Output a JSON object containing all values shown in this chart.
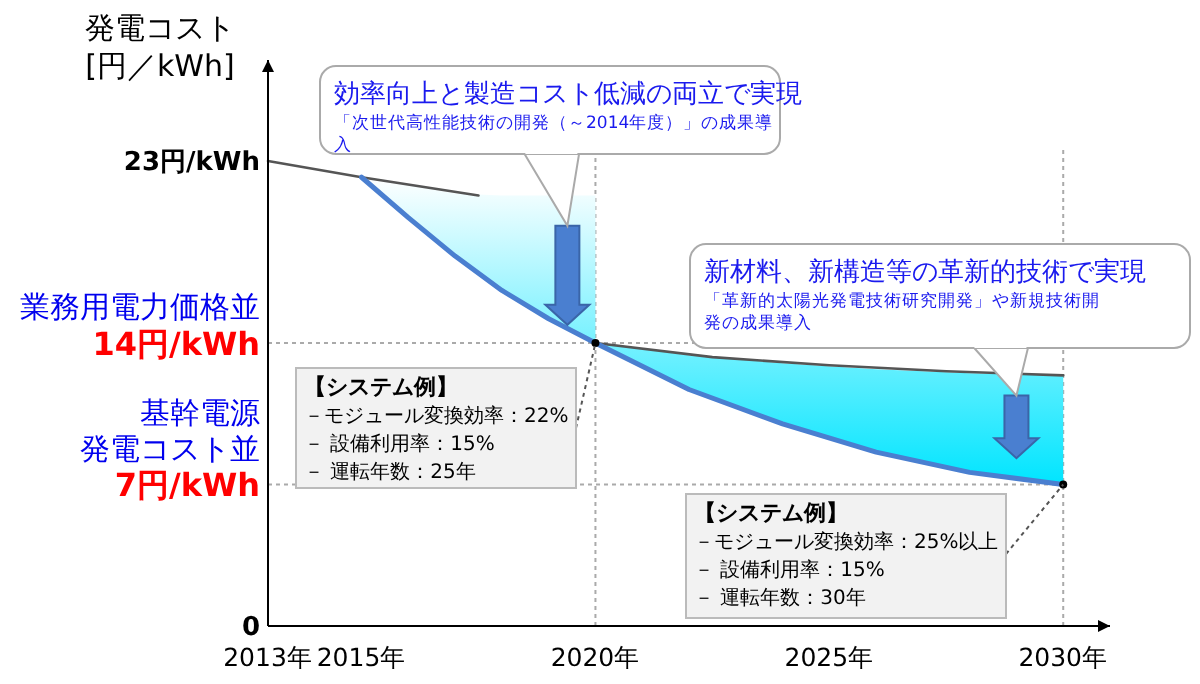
{
  "chart_data": {
    "type": "line",
    "ylabel": "発電コスト\n[円／kWh]",
    "xlim": [
      2013,
      2031
    ],
    "ylim": [
      0,
      28
    ],
    "xticks": [
      {
        "value": 2013,
        "label": "2013年"
      },
      {
        "value": 2015,
        "label": "2015年"
      },
      {
        "value": 2020,
        "label": "2020年"
      },
      {
        "value": 2025,
        "label": "2025年"
      },
      {
        "value": 2030,
        "label": "2030年"
      }
    ],
    "yticks": [
      0,
      {
        "value": 7,
        "label": "7円/kWh"
      },
      {
        "value": 14,
        "label": "14円/kWh"
      },
      {
        "value": 23,
        "label": "23円/kWh"
      }
    ],
    "marker": "none",
    "line_style": "solid",
    "series": [
      {
        "color": "#555555",
        "x": [
          2013,
          2015,
          2017.5
        ],
        "values": [
          23,
          22.2,
          21.3
        ]
      },
      {
        "color": "#555555",
        "x": [
          2020,
          2022.5,
          2025,
          2027.5,
          2030
        ],
        "values": [
          14,
          13.3,
          12.9,
          12.6,
          12.4
        ]
      },
      {
        "color": "#4a7fd0",
        "x": [
          2015,
          2016,
          2017,
          2018,
          2019,
          2020,
          2020,
          2022,
          2024,
          2026,
          2028,
          2030
        ],
        "values": [
          22.2,
          20.2,
          18.3,
          16.6,
          15.2,
          14,
          14,
          11.7,
          10.0,
          8.6,
          7.6,
          7.0
        ],
        "lower": [
          22.2,
          20.2,
          18.3,
          16.6,
          15.2,
          14,
          14,
          11.7,
          10.0,
          8.6,
          7.6,
          7.0
        ],
        "upper": [
          22.2,
          21.8,
          21.4,
          21.3,
          21.3,
          21.3,
          14,
          13.4,
          13.0,
          12.7,
          12.5,
          12.4
        ]
      },
      {
        "type": "scatter",
        "marker": "circle",
        "color": "#000000",
        "x": [
          2020,
          2030
        ],
        "values": [
          14,
          7
        ]
      }
    ],
    "ref_lines": [
      {
        "axis": "y",
        "value": 14,
        "label": "業務用電力価格並",
        "line_style": "dotted",
        "color": "#aaaaaa"
      },
      {
        "axis": "y",
        "value": 7,
        "label": "基幹電源発電コスト並",
        "line_style": "dotted",
        "color": "#aaaaaa"
      },
      {
        "axis": "x",
        "value": 2020,
        "line_style": "dotted",
        "color": "#aaaaaa"
      },
      {
        "axis": "x",
        "value": 2030,
        "line_style": "dotted",
        "color": "#aaaaaa"
      }
    ],
    "annotations": [
      "効率向上と製造コスト低減の両立で実現",
      "「次世代高性能技術の開発（～2014年度）」の成果導入",
      "新材料、新構造等の革新的技術で実現",
      "「革新的太陽光発電技術研究開発」や新規技術開発の成果導入",
      "【システム例】",
      {
        "text": "－モジュール変換効率：22%",
        "x": 2020,
        "y": 14
      },
      "－ 設備利用率：15%",
      "－ 運転年数：25年",
      "【システム例】",
      {
        "text": "－モジュール変換効率：25%以上",
        "x": 2030,
        "y": 7
      },
      "－ 設備利用率：15%",
      "－ 運転年数：30年"
    ]
  }
}
